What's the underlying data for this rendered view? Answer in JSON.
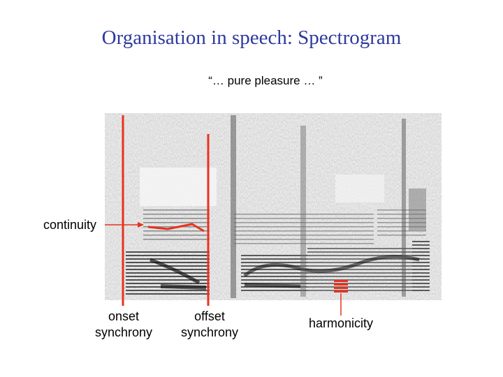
{
  "slide": {
    "title": "Organisation in speech: Spectrogram",
    "subtitle": "“… pure pleasure … ”"
  },
  "labels": {
    "continuity": "continuity",
    "onset": "onset synchrony",
    "offset": "offset synchrony",
    "harmonicity": "harmonicity"
  },
  "colors": {
    "title": "#2e3a9e",
    "annotation": "#e8321e",
    "text": "#000000"
  }
}
